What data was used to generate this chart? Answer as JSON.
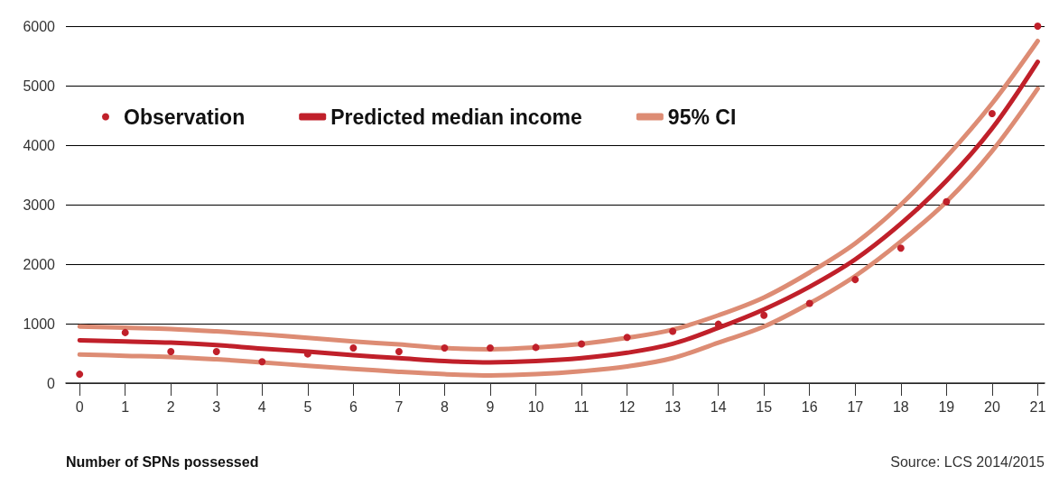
{
  "chart_data": {
    "type": "line",
    "xlabel": "Number of SPNs possessed",
    "annotations": [
      "Source: LCS 2014/2015"
    ],
    "x": [
      0,
      1,
      2,
      3,
      4,
      5,
      6,
      7,
      8,
      9,
      10,
      11,
      12,
      13,
      14,
      15,
      16,
      17,
      18,
      19,
      20,
      21
    ],
    "series": [
      {
        "name": "Observation",
        "type": "scatter",
        "marker": "circle",
        "color": "#c0202a",
        "values": [
          150,
          850,
          530,
          530,
          360,
          490,
          590,
          530,
          590,
          590,
          600,
          660,
          770,
          870,
          990,
          1140,
          1340,
          1740,
          2270,
          3050,
          4530,
          6000
        ]
      },
      {
        "name": "Predicted median income",
        "color": "#c0202a",
        "values": [
          720,
          700,
          680,
          640,
          580,
          530,
          470,
          420,
          370,
          350,
          370,
          420,
          510,
          660,
          930,
          1240,
          1620,
          2080,
          2680,
          3400,
          4280,
          5400
        ]
      },
      {
        "name": "95% CI",
        "color": "#dd8c74",
        "values": [
          950,
          930,
          910,
          870,
          820,
          760,
          700,
          650,
          590,
          570,
          600,
          660,
          760,
          900,
          1140,
          1440,
          1860,
          2350,
          3000,
          3800,
          4700,
          5750
        ]
      },
      {
        "color": "#dd8c74",
        "values": [
          480,
          460,
          440,
          400,
          350,
          290,
          240,
          190,
          150,
          130,
          150,
          200,
          280,
          420,
          680,
          950,
          1340,
          1800,
          2380,
          3050,
          3900,
          4950
        ]
      }
    ],
    "xlim": [
      -0.3,
      21.15
    ],
    "xticks": [
      0,
      1,
      2,
      3,
      4,
      5,
      6,
      7,
      8,
      9,
      10,
      11,
      12,
      13,
      14,
      15,
      16,
      17,
      18,
      19,
      20,
      21
    ],
    "ylim": [
      0,
      6000
    ],
    "yticks": [
      0,
      1000,
      2000,
      3000,
      4000,
      5000,
      6000
    ],
    "grid": "y",
    "legend": "top left",
    "marker": "none",
    "line_style": "solid"
  }
}
